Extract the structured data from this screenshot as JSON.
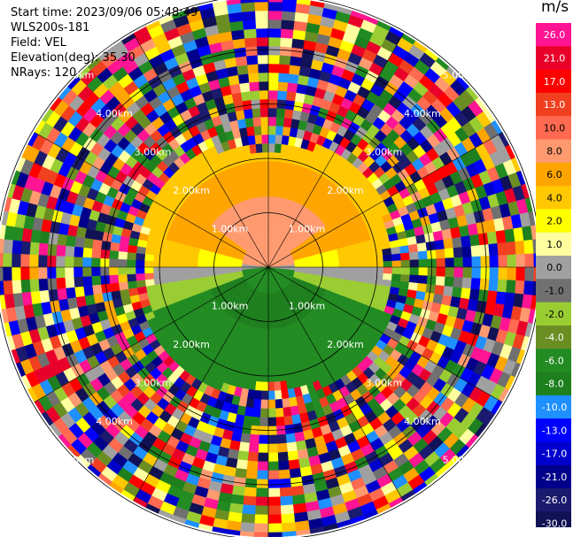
{
  "header": {
    "start_time": "Start time: 2023/09/06 05:48:49",
    "site": "WLS200s-181",
    "field": "Field: VEL",
    "elevation": "Elevation(deg): 35.30",
    "nrays": "NRays: 120"
  },
  "colorbar": {
    "unit": "m/s",
    "ticks": [
      "26.0",
      "21.0",
      "17.0",
      "13.0",
      "10.0",
      "8.0",
      "6.0",
      "4.0",
      "2.0",
      "1.0",
      "0.0",
      "-1.0",
      "-2.0",
      "-4.0",
      "-6.0",
      "-8.0",
      "-10.0",
      "-13.0",
      "-17.0",
      "-21.0",
      "-26.0",
      "-30.0"
    ],
    "colors": [
      "#ff1493",
      "#e8002a",
      "#ff0000",
      "#f04020",
      "#ff6a50",
      "#ff9a70",
      "#ffa500",
      "#ffc800",
      "#ffff00",
      "#ffffa0",
      "#a0a0a0",
      "#707070",
      "#9acd32",
      "#6b8e23",
      "#228b22",
      "#1e7f1e",
      "#1e90ff",
      "#0000ff",
      "#0000cd",
      "#00008b",
      "#1a1a6e",
      "#111155"
    ]
  },
  "chart_data": {
    "type": "heatmap",
    "subtype": "polar radar PPI",
    "field": "VEL",
    "nrays": 120,
    "range_ring_labels": [
      "1.00km",
      "2.00km",
      "3.00km",
      "4.00km",
      "5.00km"
    ],
    "clear_air_range_km": 2.4,
    "sector_pattern": [
      {
        "sector": "north",
        "values_m_s": [
          6,
          8,
          10
        ],
        "near": 1.0
      },
      {
        "sector": "east-west band",
        "values_m_s": [
          1,
          2,
          4
        ]
      },
      {
        "sector": "south",
        "values_m_s": [
          -4,
          -6,
          -8
        ]
      },
      {
        "sector": "near-zero line",
        "values_m_s": [
          0,
          -1
        ]
      }
    ]
  }
}
